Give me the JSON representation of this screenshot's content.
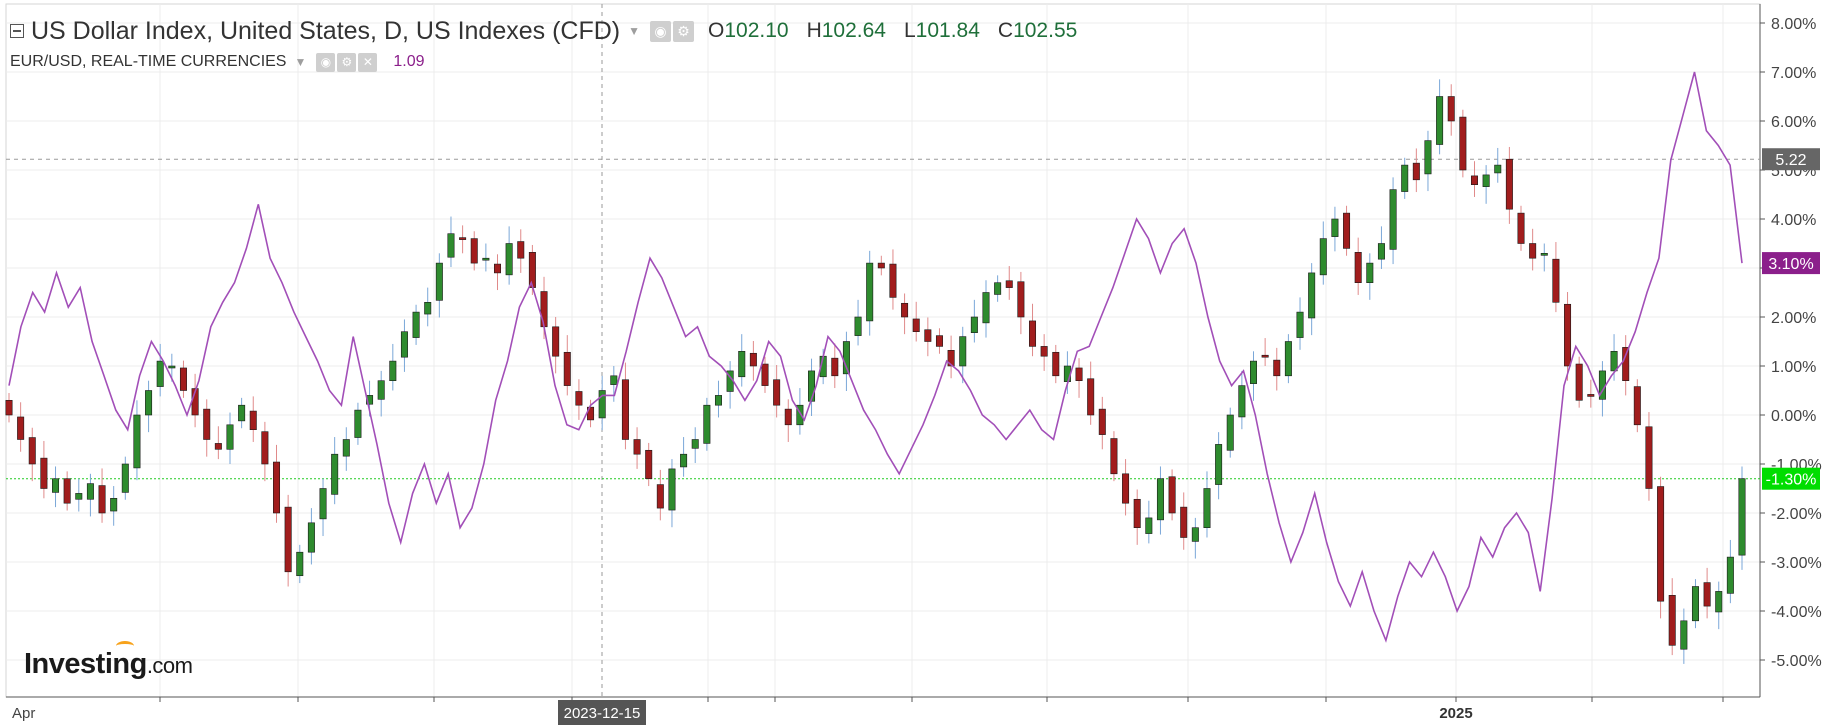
{
  "header": {
    "title": "US Dollar Index, United States, D, US Indexes (CFD)",
    "ohlc": [
      {
        "key": "O",
        "value": "102.10"
      },
      {
        "key": "H",
        "value": "102.64"
      },
      {
        "key": "L",
        "value": "101.84"
      },
      {
        "key": "C",
        "value": "102.55"
      }
    ],
    "comparison_label": "EUR/USD, REAL-TIME CURRENCIES",
    "comparison_value": "1.09"
  },
  "logo": {
    "brand": "Investing",
    "suffix": ".com"
  },
  "colors": {
    "up_candle": "#2e8b2e",
    "down_candle": "#a11d1d",
    "comparison_line": "#a24fb8",
    "last_price_badge": "#666666",
    "comparison_badge": "#8b1f8b",
    "current_change_badge": "#00dd00",
    "grid": "#ececec"
  },
  "chart_data": {
    "type": "line",
    "title": "US Dollar Index, United States, D, US Indexes (CFD)",
    "x_ticks": [
      "Apr",
      "2023-12-15",
      "2025"
    ],
    "crosshair_date": "2023-12-15",
    "y_axis": {
      "unit": "%",
      "range": [
        -5.5,
        8.5
      ],
      "ticks": [
        "8.00%",
        "7.00%",
        "6.00%",
        "5.00%",
        "4.00%",
        "3.00%",
        "2.00%",
        "1.00%",
        "0.00%",
        "-1.00%",
        "-2.00%",
        "-3.00%",
        "-4.00%",
        "-5.00%"
      ],
      "tick_values": [
        8,
        7,
        6,
        5,
        4,
        3,
        2,
        1,
        0,
        -1,
        -2,
        -3,
        -4,
        -5
      ]
    },
    "markers": {
      "reference_value": 5.22,
      "reference_label": "5.22",
      "comparison_last": 3.1,
      "comparison_label": "3.10%",
      "current_change": -1.3,
      "current_change_label": "-1.30%"
    },
    "series": [
      {
        "role": "candles",
        "values": [
          0.0,
          -0.5,
          -1.0,
          -1.5,
          -1.3,
          -1.8,
          -1.6,
          -1.4,
          -2.0,
          -1.7,
          -1.0,
          0.0,
          0.5,
          1.1,
          1.0,
          0.5,
          0.0,
          -0.5,
          -0.7,
          -0.2,
          0.2,
          -0.3,
          -1.0,
          -2.0,
          -3.2,
          -2.8,
          -2.2,
          -1.5,
          -0.8,
          -0.5,
          0.1,
          0.4,
          0.7,
          1.1,
          1.7,
          2.1,
          2.3,
          3.1,
          3.7,
          3.6,
          3.1,
          3.2,
          2.9,
          3.5,
          3.2,
          2.6,
          1.8,
          1.2,
          0.6,
          0.2,
          -0.1,
          0.5,
          0.8,
          -0.5,
          -0.8,
          -1.3,
          -1.9,
          -1.1,
          -0.8,
          -0.5,
          0.2,
          0.4,
          0.9,
          1.3,
          1.0,
          0.6,
          0.2,
          -0.2,
          0.2,
          0.9,
          1.2,
          0.8,
          1.5,
          2.0,
          3.1,
          3.0,
          2.4,
          2.0,
          1.7,
          1.5,
          1.4,
          1.0,
          1.6,
          2.0,
          2.5,
          2.7,
          2.6,
          2.0,
          1.4,
          1.2,
          0.8,
          1.0,
          0.7,
          0.0,
          -0.4,
          -1.2,
          -1.8,
          -2.3,
          -2.1,
          -1.3,
          -2.0,
          -2.5,
          -2.3,
          -1.5,
          -0.6,
          0.0,
          0.6,
          1.1,
          1.2,
          0.8,
          1.5,
          2.1,
          2.9,
          3.6,
          4.0,
          3.4,
          2.7,
          3.1,
          3.5,
          4.6,
          5.1,
          4.8,
          5.6,
          6.5,
          6.0,
          5.0,
          4.7,
          4.9,
          5.1,
          4.2,
          3.5,
          3.2,
          3.3,
          2.3,
          1.0,
          0.3,
          0.4,
          0.9,
          1.3,
          0.7,
          -0.2,
          -1.5,
          -3.8,
          -4.7,
          -4.2,
          -3.5,
          -3.9,
          -3.6,
          -2.9,
          -1.3
        ]
      },
      {
        "name": "EUR/USD, REAL-TIME CURRENCIES",
        "role": "comparison",
        "values": [
          0.6,
          1.8,
          2.5,
          2.1,
          2.9,
          2.2,
          2.6,
          1.5,
          0.8,
          0.1,
          -0.3,
          0.8,
          1.5,
          1.1,
          0.6,
          0.0,
          0.7,
          1.8,
          2.3,
          2.7,
          3.4,
          4.3,
          3.2,
          2.7,
          2.1,
          1.6,
          1.1,
          0.5,
          0.2,
          1.6,
          0.5,
          -0.6,
          -1.8,
          -2.6,
          -1.6,
          -1.0,
          -1.8,
          -1.2,
          -2.3,
          -1.9,
          -1.0,
          0.3,
          1.1,
          2.2,
          2.7,
          1.9,
          0.6,
          -0.2,
          -0.3,
          0.2,
          0.4,
          0.4,
          1.3,
          2.3,
          3.2,
          2.8,
          2.2,
          1.6,
          1.8,
          1.2,
          1.0,
          0.7,
          0.3,
          0.7,
          1.5,
          1.2,
          0.3,
          -0.1,
          0.6,
          1.6,
          1.3,
          0.7,
          0.1,
          -0.3,
          -0.8,
          -1.2,
          -0.7,
          -0.2,
          0.4,
          1.1,
          0.9,
          0.5,
          0.0,
          -0.2,
          -0.5,
          -0.2,
          0.1,
          -0.3,
          -0.5,
          0.5,
          1.3,
          1.4,
          2.0,
          2.6,
          3.3,
          4.0,
          3.6,
          2.9,
          3.5,
          3.8,
          3.1,
          2.0,
          1.1,
          0.6,
          0.9,
          0.0,
          -1.2,
          -2.2,
          -3.0,
          -2.4,
          -1.6,
          -2.6,
          -3.4,
          -3.9,
          -3.2,
          -4.0,
          -4.6,
          -3.7,
          -3.0,
          -3.3,
          -2.8,
          -3.3,
          -4.0,
          -3.5,
          -2.5,
          -2.9,
          -2.3,
          -2.0,
          -2.4,
          -3.6,
          -1.7,
          0.6,
          1.4,
          1.0,
          0.4,
          0.8,
          1.1,
          1.7,
          2.5,
          3.2,
          5.2,
          6.1,
          7.0,
          5.8,
          5.5,
          5.1,
          3.1
        ]
      }
    ],
    "grid": true,
    "legend": "top-left"
  }
}
